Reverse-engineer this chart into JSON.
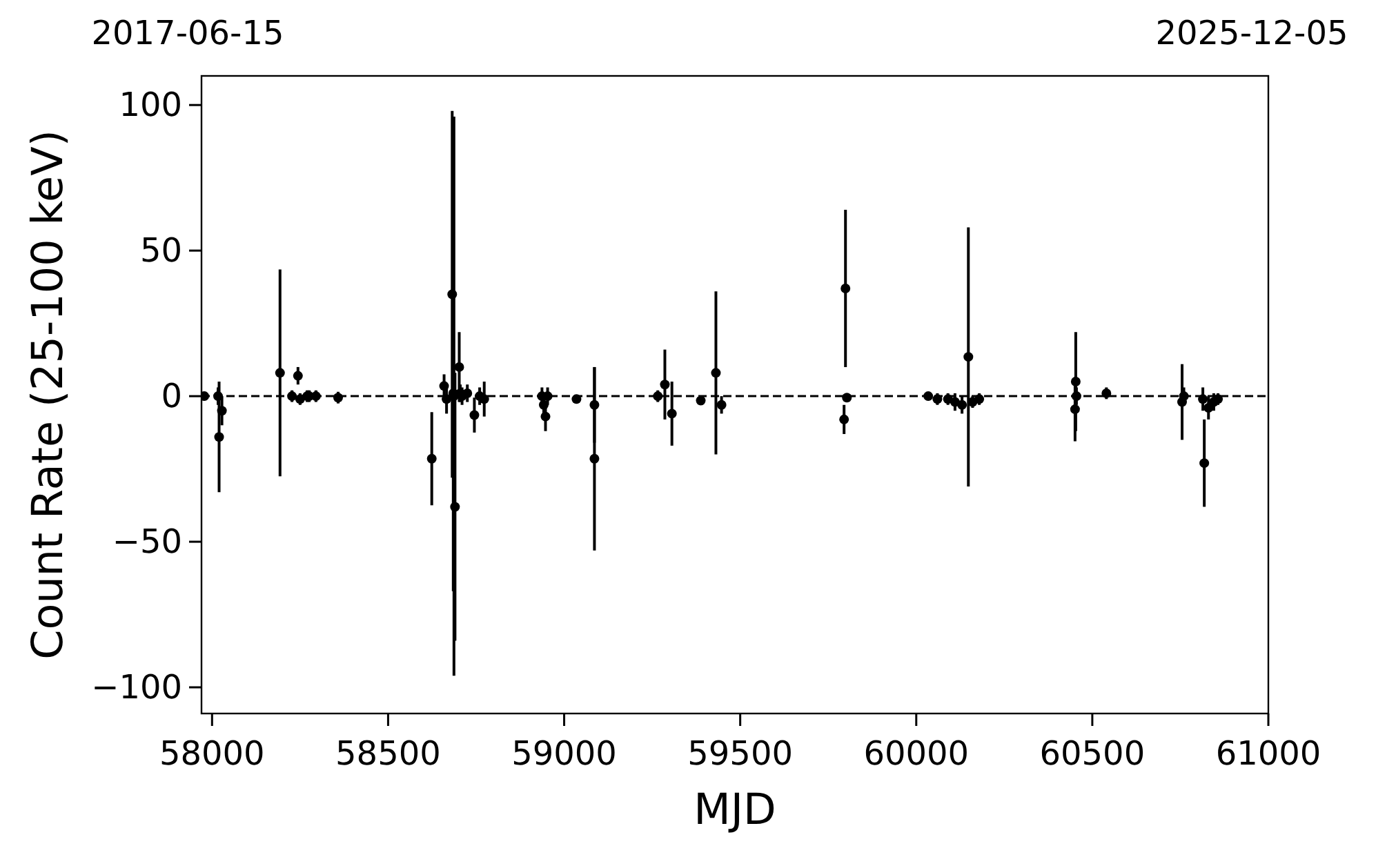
{
  "chart_data": {
    "type": "scatter",
    "xlabel": "MJD",
    "ylabel": "Count Rate (25-100 keV)",
    "annotations": [
      "2017-06-15",
      "2025-12-05"
    ],
    "xlim": [
      57970,
      61000
    ],
    "ylim": [
      -109,
      110
    ],
    "xticks": [
      58000,
      58500,
      59000,
      59500,
      60000,
      60500,
      61000
    ],
    "yticks": [
      -100,
      -50,
      0,
      50,
      100
    ],
    "grid": false,
    "marker": "circle",
    "ref_lines": [
      {
        "axis": "y",
        "value": 0,
        "color": "#000000",
        "line_style": "dashed"
      }
    ],
    "series": [
      {
        "color": "#000000",
        "x": [
          57978,
          58017,
          58020,
          58028,
          58193,
          58244,
          58227,
          58250,
          58270,
          58276,
          58295,
          58358,
          58624,
          58659,
          58682,
          58685,
          58690,
          58687,
          58702,
          58666,
          58705,
          58710,
          58725,
          58745,
          58760,
          58773,
          58937,
          58942,
          58947,
          58953,
          59035,
          59086,
          59086,
          59266,
          59286,
          59306,
          59388,
          59431,
          59447,
          59799,
          59803,
          59795,
          60034,
          60060,
          60090,
          60110,
          60130,
          60148,
          60160,
          60179,
          60453,
          60455,
          60451,
          60540,
          60755,
          60760,
          60814,
          60818,
          60830,
          60845,
          60857
        ],
        "values": [
          0,
          0,
          -14,
          -5,
          8,
          7,
          0,
          -1,
          0,
          0,
          0,
          -0.5,
          -21.5,
          3.5,
          35,
          1,
          -38,
          0,
          10,
          -1,
          1,
          0,
          1,
          -6.5,
          0,
          -1,
          0,
          -3,
          -7,
          0,
          -1,
          -3,
          -21.5,
          0,
          4,
          -6,
          -1.5,
          8,
          -3,
          37,
          -0.5,
          -8,
          0,
          -1,
          -1,
          -2,
          -3,
          13.5,
          -2,
          -1,
          5,
          0,
          -4.5,
          1,
          -2,
          0,
          -1,
          -23,
          -4,
          -2,
          -1
        ],
        "errors": [
          1,
          3,
          19,
          5,
          35.5,
          3,
          2,
          2,
          2,
          2,
          2,
          2,
          16,
          4,
          63,
          68,
          46,
          96,
          12,
          5,
          3,
          3,
          3,
          6,
          3,
          6,
          3,
          4,
          5,
          3,
          1,
          13,
          31.5,
          2,
          12,
          11,
          1,
          28,
          3,
          27,
          1,
          5,
          1,
          2,
          2,
          3,
          3,
          44.5,
          2,
          2,
          17,
          3,
          11,
          2,
          13,
          3,
          4,
          15,
          4,
          3,
          2
        ]
      }
    ]
  }
}
